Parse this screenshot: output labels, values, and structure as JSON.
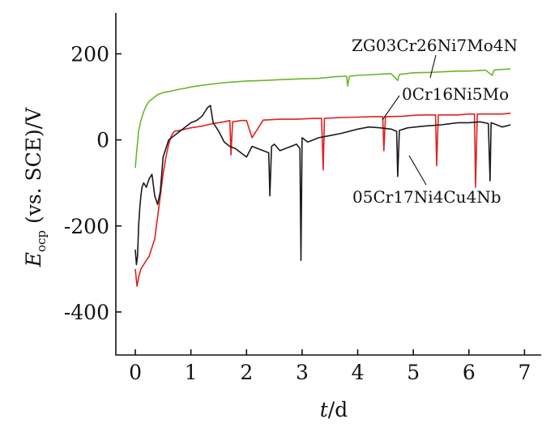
{
  "chart_data": {
    "type": "line",
    "title": "",
    "xlabel": {
      "italic": "t",
      "rest": "/d"
    },
    "ylabel": {
      "symbol": "E",
      "subscript": "ocp",
      "rest": " (vs. SCE)/V"
    },
    "xlim": [
      -0.35,
      7.3
    ],
    "ylim": [
      -500,
      295
    ],
    "xticks": [
      0,
      1,
      2,
      3,
      4,
      5,
      6,
      7
    ],
    "yticks": [
      -400,
      -200,
      0,
      200
    ],
    "xtick_labels": [
      "0",
      "1",
      "2",
      "3",
      "4",
      "5",
      "6",
      "7"
    ],
    "ytick_labels": [
      "-400",
      "-200",
      "0",
      "200"
    ],
    "grid": false,
    "legend": "inline labels with leader lines",
    "series": [
      {
        "name": "ZG03Cr26Ni7Mo4N",
        "color": "#6bb52a",
        "x": [
          0.0,
          0.03,
          0.06,
          0.1,
          0.15,
          0.2,
          0.25,
          0.3,
          0.4,
          0.5,
          0.6,
          0.7,
          0.8,
          0.9,
          1.0,
          1.2,
          1.4,
          1.6,
          1.8,
          2.0,
          2.3,
          2.6,
          3.0,
          3.3,
          3.6,
          3.8,
          3.82,
          3.85,
          4.0,
          4.3,
          4.6,
          4.72,
          4.75,
          4.8,
          5.0,
          5.3,
          5.5,
          5.8,
          6.0,
          6.3,
          6.42,
          6.45,
          6.5,
          6.75
        ],
        "y": [
          -65,
          -20,
          20,
          45,
          65,
          80,
          90,
          95,
          105,
          110,
          112,
          115,
          118,
          120,
          123,
          127,
          130,
          133,
          135,
          137,
          138,
          140,
          142,
          143,
          147,
          148,
          125,
          148,
          150,
          152,
          154,
          138,
          152,
          153,
          156,
          157,
          158,
          160,
          160,
          162,
          150,
          162,
          163,
          165
        ]
      },
      {
        "name": "0Cr16Ni5Mo",
        "color": "#e02020",
        "x": [
          0.0,
          0.03,
          0.06,
          0.1,
          0.15,
          0.2,
          0.25,
          0.3,
          0.35,
          0.4,
          0.45,
          0.5,
          0.55,
          0.6,
          0.65,
          0.7,
          0.8,
          0.9,
          1.0,
          1.2,
          1.4,
          1.6,
          1.7,
          1.72,
          1.75,
          1.9,
          2.0,
          2.1,
          2.3,
          2.6,
          2.9,
          3.2,
          3.35,
          3.38,
          3.4,
          3.7,
          4.0,
          4.3,
          4.45,
          4.47,
          4.5,
          4.8,
          5.0,
          5.2,
          5.4,
          5.42,
          5.45,
          5.8,
          6.0,
          6.1,
          6.12,
          6.15,
          6.4,
          6.5,
          6.6,
          6.75
        ],
        "y": [
          -300,
          -340,
          -320,
          -300,
          -290,
          -280,
          -270,
          -250,
          -230,
          -180,
          -130,
          -80,
          -40,
          -10,
          10,
          20,
          22,
          25,
          28,
          32,
          38,
          42,
          45,
          -35,
          42,
          45,
          45,
          5,
          46,
          48,
          48,
          50,
          50,
          -70,
          50,
          52,
          53,
          54,
          54,
          -25,
          54,
          55,
          57,
          58,
          58,
          -60,
          58,
          58,
          60,
          60,
          -110,
          60,
          60,
          60,
          60,
          62
        ]
      },
      {
        "name": "05Cr17Ni4Cu4Nb",
        "color": "#1a1a1a",
        "x": [
          0.0,
          0.02,
          0.04,
          0.06,
          0.08,
          0.1,
          0.12,
          0.15,
          0.2,
          0.25,
          0.3,
          0.35,
          0.4,
          0.45,
          0.5,
          0.6,
          0.7,
          0.8,
          0.9,
          1.0,
          1.1,
          1.2,
          1.3,
          1.35,
          1.4,
          1.5,
          1.6,
          1.7,
          1.8,
          1.9,
          2.0,
          2.1,
          2.2,
          2.3,
          2.4,
          2.42,
          2.45,
          2.5,
          2.6,
          2.7,
          2.8,
          2.9,
          2.96,
          2.98,
          3.0,
          3.1,
          3.2,
          3.3,
          3.5,
          3.7,
          4.0,
          4.2,
          4.4,
          4.6,
          4.7,
          4.72,
          4.75,
          4.9,
          5.2,
          5.5,
          5.8,
          6.0,
          6.2,
          6.35,
          6.38,
          6.4,
          6.5,
          6.6,
          6.75
        ],
        "y": [
          -255,
          -290,
          -270,
          -200,
          -160,
          -130,
          -110,
          -100,
          -110,
          -90,
          -80,
          -130,
          -150,
          -120,
          -40,
          0,
          10,
          20,
          30,
          40,
          45,
          55,
          75,
          80,
          40,
          20,
          -5,
          -15,
          -20,
          -30,
          -40,
          -15,
          -20,
          -25,
          -30,
          -130,
          -15,
          -10,
          -25,
          -20,
          -15,
          -10,
          -20,
          -280,
          5,
          -5,
          0,
          5,
          10,
          15,
          25,
          30,
          28,
          25,
          20,
          -85,
          22,
          28,
          32,
          35,
          40,
          40,
          42,
          38,
          -95,
          40,
          35,
          30,
          35
        ]
      }
    ]
  }
}
